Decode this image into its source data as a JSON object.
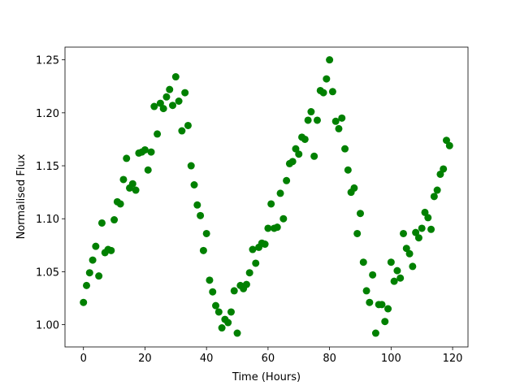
{
  "chart_data": {
    "type": "scatter",
    "x_label": "Time (Hours)",
    "y_label": "Normalised Flux",
    "color": "#008000",
    "x": [
      0,
      1,
      2,
      3,
      4,
      5,
      6,
      7,
      8,
      9,
      10,
      11,
      12,
      13,
      14,
      15,
      16,
      17,
      18,
      19,
      20,
      21,
      22,
      23,
      24,
      25,
      26,
      27,
      28,
      29,
      30,
      31,
      32,
      33,
      34,
      35,
      36,
      37,
      38,
      39,
      40,
      41,
      42,
      43,
      44,
      45,
      46,
      47,
      48,
      49,
      50,
      51,
      52,
      53,
      54,
      55,
      56,
      57,
      58,
      59,
      60,
      61,
      62,
      63,
      64,
      65,
      66,
      67,
      68,
      69,
      70,
      71,
      72,
      73,
      74,
      75,
      76,
      77,
      78,
      79,
      80,
      81,
      82,
      83,
      84,
      85,
      86,
      87,
      88,
      89,
      90,
      91,
      92,
      93,
      94,
      95,
      96,
      97,
      98,
      99,
      100,
      101,
      102,
      103,
      104,
      105,
      106,
      107,
      108,
      109,
      110,
      111,
      112,
      113,
      114,
      115,
      116,
      117,
      118,
      119
    ],
    "values": [
      1.021,
      1.037,
      1.049,
      1.061,
      1.074,
      1.046,
      1.096,
      1.068,
      1.071,
      1.07,
      1.099,
      1.116,
      1.114,
      1.137,
      1.157,
      1.129,
      1.133,
      1.127,
      1.162,
      1.163,
      1.165,
      1.146,
      1.163,
      1.206,
      1.18,
      1.209,
      1.204,
      1.215,
      1.222,
      1.207,
      1.234,
      1.211,
      1.183,
      1.219,
      1.188,
      1.15,
      1.132,
      1.113,
      1.103,
      1.07,
      1.086,
      1.042,
      1.031,
      1.018,
      1.012,
      0.997,
      1.005,
      1.002,
      1.012,
      1.032,
      0.992,
      1.037,
      1.034,
      1.038,
      1.049,
      1.071,
      1.058,
      1.073,
      1.077,
      1.076,
      1.091,
      1.114,
      1.091,
      1.092,
      1.124,
      1.1,
      1.136,
      1.152,
      1.154,
      1.166,
      1.161,
      1.177,
      1.175,
      1.193,
      1.201,
      1.159,
      1.193,
      1.221,
      1.219,
      1.232,
      1.25,
      1.22,
      1.192,
      1.185,
      1.195,
      1.166,
      1.146,
      1.125,
      1.129,
      1.086,
      1.105,
      1.059,
      1.032,
      1.021,
      1.047,
      0.992,
      1.019,
      1.019,
      1.003,
      1.015,
      1.059,
      1.041,
      1.051,
      1.044,
      1.086,
      1.072,
      1.067,
      1.055,
      1.087,
      1.082,
      1.091,
      1.106,
      1.101,
      1.09,
      1.121,
      1.127,
      1.142,
      1.147,
      1.174,
      1.169
    ],
    "xlim": [
      -6,
      125
    ],
    "ylim": [
      0.979,
      1.262
    ],
    "xticks": [
      0,
      20,
      40,
      60,
      80,
      100,
      120
    ],
    "yticks": [
      {
        "value": 1.0,
        "label": "1.00"
      },
      {
        "value": 1.05,
        "label": "1.05"
      },
      {
        "value": 1.1,
        "label": "1.10"
      },
      {
        "value": 1.15,
        "label": "1.15"
      },
      {
        "value": 1.2,
        "label": "1.20"
      },
      {
        "value": 1.25,
        "label": "1.25"
      }
    ]
  }
}
